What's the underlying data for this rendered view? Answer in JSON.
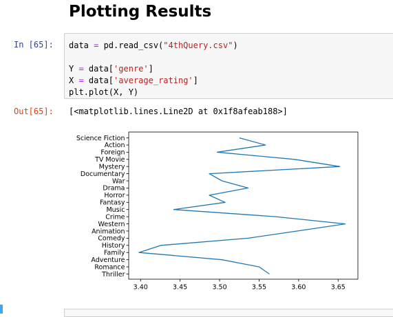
{
  "notebook": {
    "heading": "Plotting Results",
    "input_prompt": "In [65]:",
    "output_prompt": "Out[65]:",
    "output_text": "[<matplotlib.lines.Line2D at 0x1f8afeab188>]"
  },
  "code": {
    "line1": [
      "data ",
      "=",
      " pd.read_csv(",
      "\"4thQuery.csv\"",
      ")"
    ],
    "line2": [
      "Y ",
      "=",
      " data[",
      "'genre'",
      "]"
    ],
    "line3": [
      "X ",
      "=",
      " data[",
      "'average_rating'",
      "]"
    ],
    "line4": "plt.plot(X, Y)"
  },
  "chart_data": {
    "type": "line",
    "title": "",
    "xlabel": "",
    "ylabel": "",
    "xlim": [
      3.385,
      3.675
    ],
    "xticks": [
      3.4,
      3.45,
      3.5,
      3.55,
      3.6,
      3.65
    ],
    "xtick_labels": [
      "3.40",
      "3.45",
      "3.50",
      "3.55",
      "3.60",
      "3.65"
    ],
    "grid": false,
    "color": "#1f77b4",
    "categories": [
      "Thriller",
      "Romance",
      "Adventure",
      "Family",
      "History",
      "Comedy",
      "Animation",
      "Western",
      "Crime",
      "Music",
      "Fantasy",
      "Horror",
      "Drama",
      "War",
      "Documentary",
      "Mystery",
      "TV Movie",
      "Foreign",
      "Action",
      "Science Fiction"
    ],
    "points": [
      {
        "genre": "Science Fiction",
        "x": 3.525
      },
      {
        "genre": "Action",
        "x": 3.558
      },
      {
        "genre": "Foreign",
        "x": 3.497
      },
      {
        "genre": "TV Movie",
        "x": 3.595
      },
      {
        "genre": "Mystery",
        "x": 3.652
      },
      {
        "genre": "Documentary",
        "x": 3.487
      },
      {
        "genre": "War",
        "x": 3.503
      },
      {
        "genre": "Drama",
        "x": 3.536
      },
      {
        "genre": "Horror",
        "x": 3.487
      },
      {
        "genre": "Fantasy",
        "x": 3.507
      },
      {
        "genre": "Music",
        "x": 3.442
      },
      {
        "genre": "Crime",
        "x": 3.571
      },
      {
        "genre": "Western",
        "x": 3.659
      },
      {
        "genre": "Animation",
        "x": 3.598
      },
      {
        "genre": "Comedy",
        "x": 3.536
      },
      {
        "genre": "History",
        "x": 3.426
      },
      {
        "genre": "Family",
        "x": 3.398
      },
      {
        "genre": "Adventure",
        "x": 3.503
      },
      {
        "genre": "Romance",
        "x": 3.55
      },
      {
        "genre": "Thriller",
        "x": 3.563
      }
    ]
  }
}
